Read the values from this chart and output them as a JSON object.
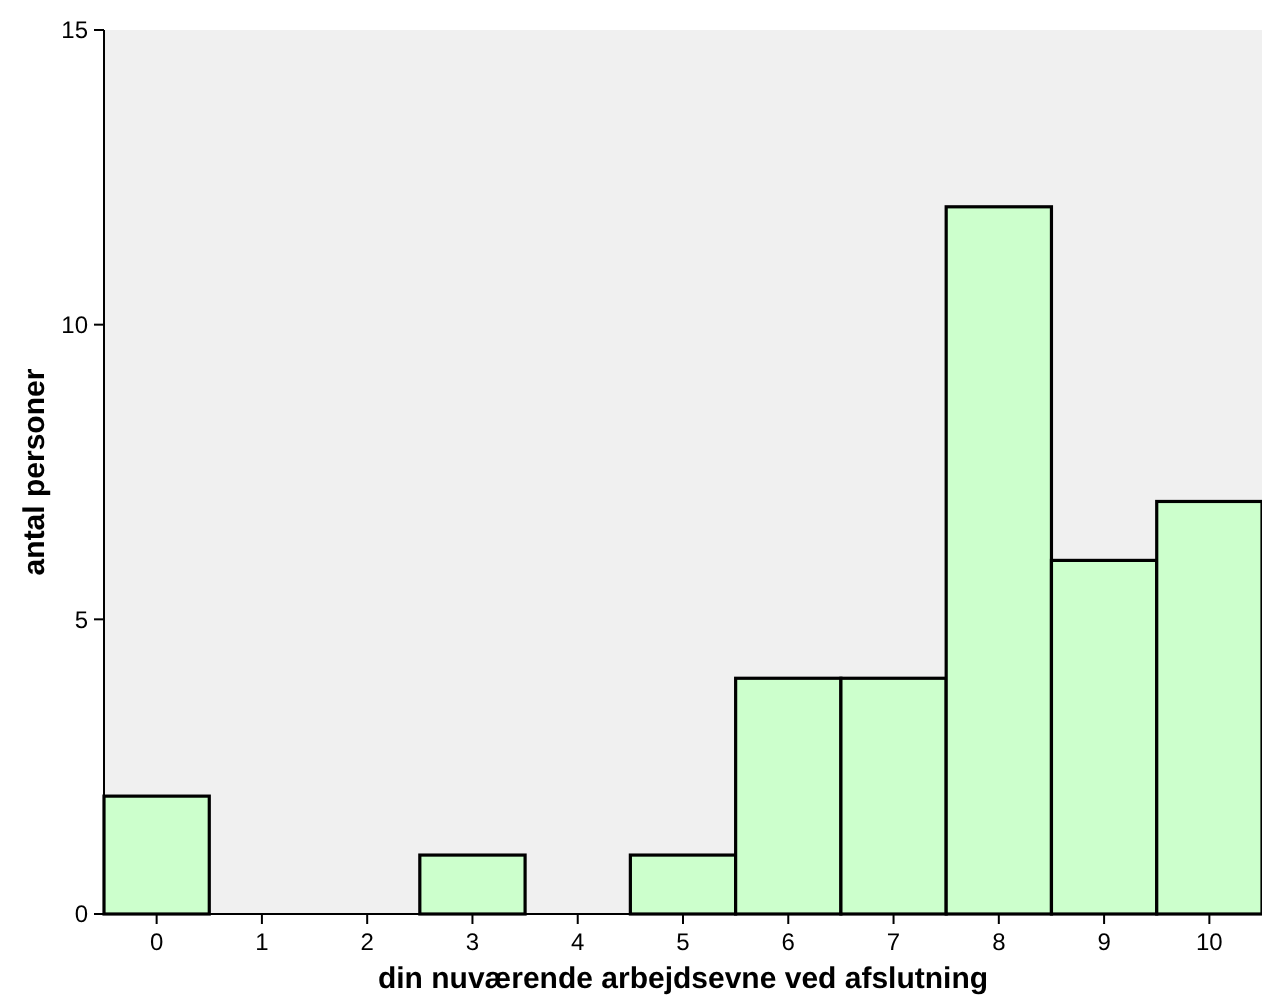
{
  "chart_data": {
    "type": "bar",
    "xlabel": "din nuværende arbejdsevne ved afslutning",
    "ylabel": "antal personer",
    "categories": [
      "0",
      "1",
      "2",
      "3",
      "4",
      "5",
      "6",
      "7",
      "8",
      "9",
      "10"
    ],
    "values": [
      2,
      0,
      0,
      1,
      0,
      1,
      4,
      4,
      12,
      6,
      7
    ],
    "color": "#ccffcc",
    "ylim": [
      0,
      15
    ],
    "yticks": [
      0,
      5,
      10,
      15
    ],
    "grid": false
  }
}
